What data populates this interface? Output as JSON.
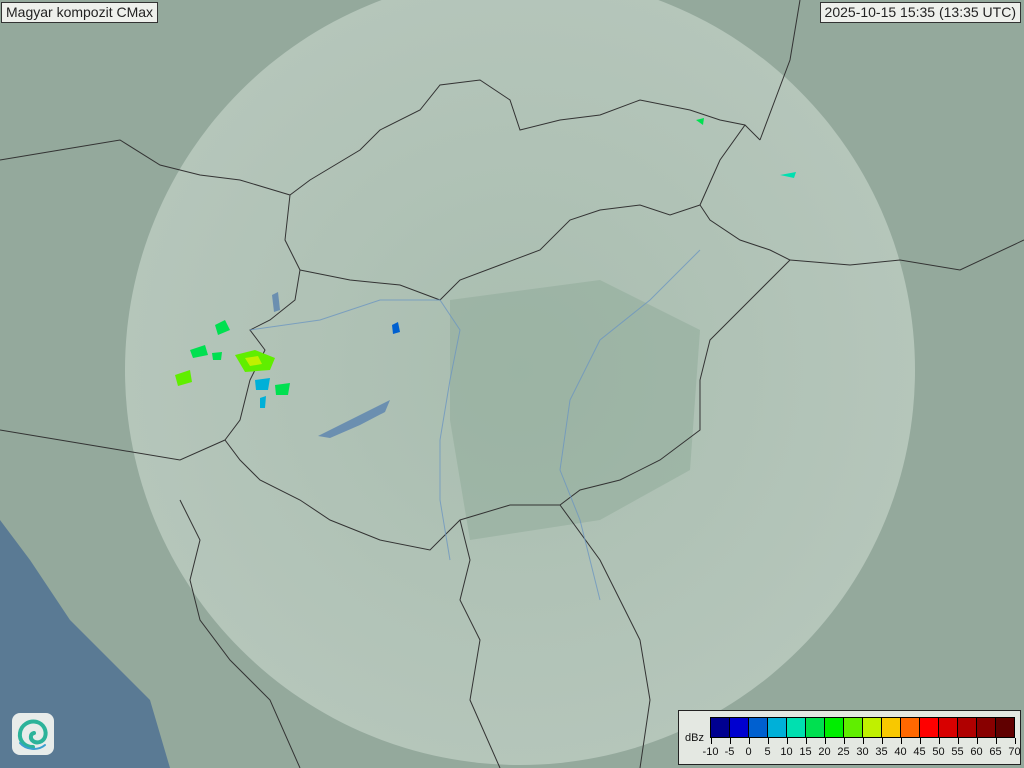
{
  "title": "Magyar kompozit  CMax",
  "timestamp": "2025-10-15 15:35 (13:35 UTC)",
  "legend": {
    "unit": "dBz",
    "ticks": [
      "-10",
      "-5",
      "0",
      "5",
      "10",
      "15",
      "20",
      "25",
      "30",
      "35",
      "40",
      "45",
      "50",
      "55",
      "60",
      "65",
      "70"
    ],
    "colors": [
      "#000090",
      "#0000d0",
      "#0060d0",
      "#00b0d8",
      "#00e0b0",
      "#00e050",
      "#00ee00",
      "#60ee00",
      "#c0f000",
      "#f8c800",
      "#ff6800",
      "#ff0000",
      "#d80000",
      "#b00000",
      "#880000",
      "#600000"
    ]
  },
  "colors": {
    "sea": "#5a7a94",
    "land": "#8fa79a",
    "radar_coverage": "#c8d8cc"
  },
  "logo_icon": "swirl-logo-icon"
}
